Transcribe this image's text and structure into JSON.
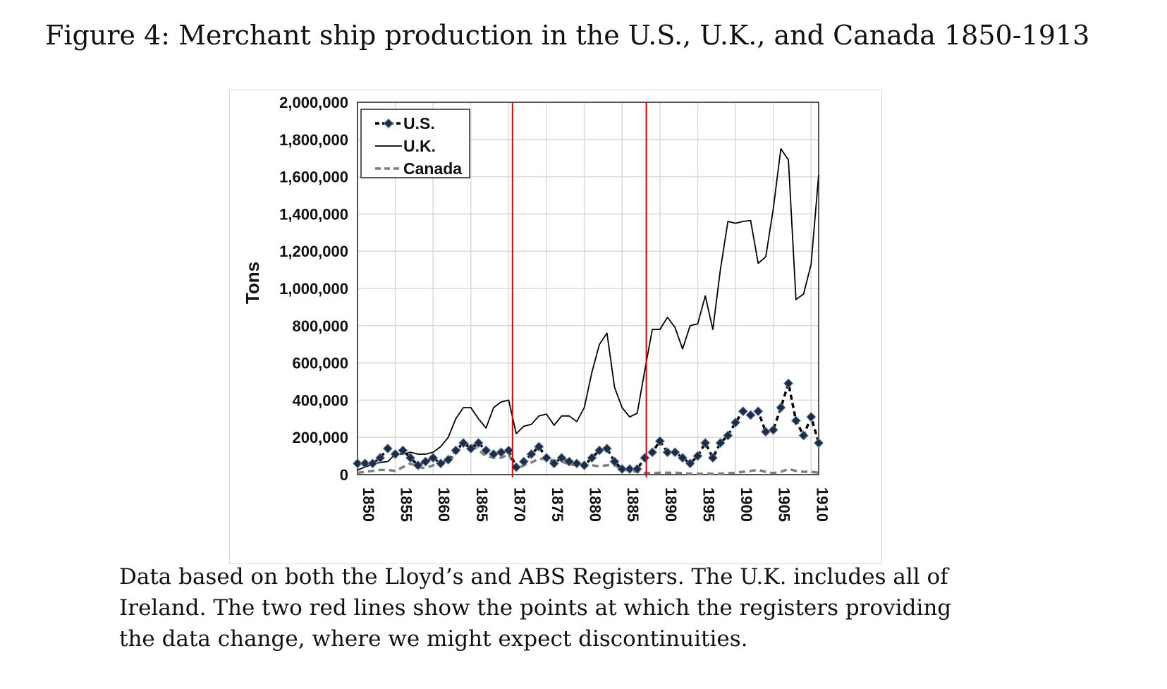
{
  "figure": {
    "title": "Figure 4: Merchant ship production in the U.S., U.K., and Canada 1850-1913",
    "caption": "Data based on both the Lloyd’s and ABS Registers. The U.K. includes all of Ireland. The two red lines show the points at which the registers providing the data change, where we might expect discontinuities."
  },
  "chart_data": {
    "type": "line",
    "ylabel": "Tons",
    "xlabel": "",
    "ylim": [
      0,
      2000000
    ],
    "xlim": [
      1850,
      1911
    ],
    "yticks": [
      0,
      200000,
      400000,
      600000,
      800000,
      1000000,
      1200000,
      1400000,
      1600000,
      1800000,
      2000000
    ],
    "ytick_labels": [
      "0",
      "200,000",
      "400,000",
      "600,000",
      "800,000",
      "1,000,000",
      "1,200,000",
      "1,400,000",
      "1,600,000",
      "1,800,000",
      "2,000,000"
    ],
    "xtick_labels": [
      "1850",
      "1855",
      "1860",
      "1865",
      "1870",
      "1875",
      "1880",
      "1885",
      "1890",
      "1895",
      "1900",
      "1905",
      "1910"
    ],
    "grid": true,
    "legend_position": "top-left",
    "vertical_markers": [
      1870.5,
      1888.2
    ],
    "x": [
      1850,
      1851,
      1852,
      1853,
      1854,
      1855,
      1856,
      1857,
      1858,
      1859,
      1860,
      1861,
      1862,
      1863,
      1864,
      1865,
      1866,
      1867,
      1868,
      1869,
      1870,
      1871,
      1872,
      1873,
      1874,
      1875,
      1876,
      1877,
      1878,
      1879,
      1880,
      1881,
      1882,
      1883,
      1884,
      1885,
      1886,
      1887,
      1888,
      1889,
      1890,
      1891,
      1892,
      1893,
      1894,
      1895,
      1896,
      1897,
      1898,
      1899,
      1900,
      1901,
      1902,
      1903,
      1904,
      1905,
      1906,
      1907,
      1908,
      1909,
      1910,
      1911
    ],
    "series": [
      {
        "name": "U.S.",
        "color": "#000000",
        "style": "dashed-marker",
        "values": [
          60000,
          60000,
          60000,
          90000,
          140000,
          110000,
          130000,
          90000,
          50000,
          70000,
          90000,
          60000,
          80000,
          130000,
          170000,
          140000,
          170000,
          130000,
          110000,
          120000,
          130000,
          40000,
          70000,
          110000,
          150000,
          90000,
          60000,
          90000,
          70000,
          60000,
          50000,
          90000,
          130000,
          140000,
          70000,
          30000,
          30000,
          30000,
          90000,
          120000,
          180000,
          120000,
          120000,
          90000,
          60000,
          100000,
          170000,
          90000,
          170000,
          210000,
          280000,
          340000,
          320000,
          340000,
          230000,
          240000,
          360000,
          490000,
          290000,
          210000,
          310000,
          170000
        ]
      },
      {
        "name": "U.K.",
        "color": "#000000",
        "style": "solid",
        "values": [
          25000,
          40000,
          55000,
          65000,
          70000,
          110000,
          110000,
          120000,
          110000,
          110000,
          120000,
          150000,
          200000,
          300000,
          360000,
          360000,
          300000,
          250000,
          360000,
          390000,
          400000,
          220000,
          260000,
          270000,
          315000,
          325000,
          265000,
          315000,
          315000,
          285000,
          360000,
          550000,
          700000,
          760000,
          470000,
          360000,
          310000,
          330000,
          560000,
          780000,
          780000,
          845000,
          790000,
          675000,
          800000,
          810000,
          960000,
          780000,
          1100000,
          1360000,
          1350000,
          1360000,
          1365000,
          1135000,
          1170000,
          1430000,
          1750000,
          1690000,
          940000,
          970000,
          1130000,
          1610000
        ]
      },
      {
        "name": "Canada",
        "color": "#7f7f7f",
        "style": "dashed",
        "values": [
          10000,
          15000,
          20000,
          25000,
          25000,
          20000,
          40000,
          60000,
          40000,
          35000,
          50000,
          60000,
          70000,
          110000,
          160000,
          170000,
          130000,
          100000,
          90000,
          90000,
          110000,
          30000,
          50000,
          65000,
          85000,
          85000,
          75000,
          70000,
          55000,
          50000,
          50000,
          50000,
          45000,
          50000,
          50000,
          30000,
          20000,
          15000,
          10000,
          8000,
          10000,
          10000,
          10000,
          8000,
          5000,
          5000,
          5000,
          5000,
          5000,
          8000,
          10000,
          15000,
          20000,
          25000,
          15000,
          8000,
          15000,
          30000,
          20000,
          15000,
          15000,
          10000
        ]
      }
    ]
  }
}
